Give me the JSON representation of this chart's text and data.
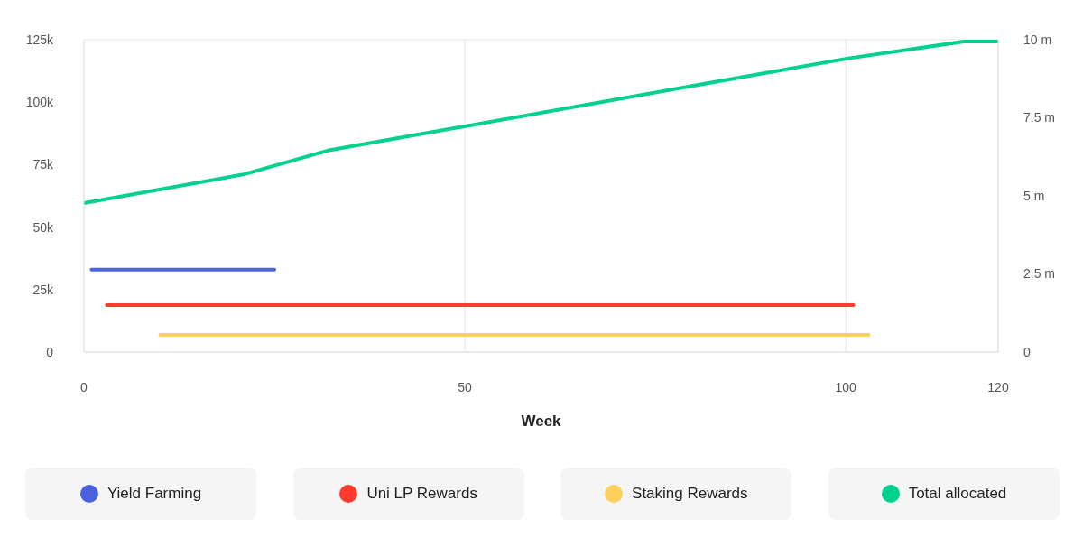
{
  "chart_data": {
    "type": "line",
    "xlabel": "Week",
    "xlim": [
      0,
      120
    ],
    "xticks": [
      0,
      50,
      100,
      120
    ],
    "ylim": [
      0,
      125000
    ],
    "yticks": [
      0,
      {
        "value": 25000,
        "label": "25k"
      },
      {
        "value": 50000,
        "label": "50k"
      },
      {
        "value": 75000,
        "label": "75k"
      },
      {
        "value": 100000,
        "label": "100k"
      },
      {
        "value": 125000,
        "label": "125k"
      }
    ],
    "y2lim": [
      0,
      10000000
    ],
    "y2ticks": [
      0,
      {
        "value": 2500000,
        "label": "2.5 m"
      },
      {
        "value": 5000000,
        "label": "5 m"
      },
      {
        "value": 7500000,
        "label": "7.5 m"
      },
      {
        "value": 10000000,
        "label": "10 m"
      }
    ],
    "grid": true,
    "legend": "bottom",
    "marker": "none",
    "line_style": "solid",
    "series": [
      {
        "name": "Yield Farming",
        "color": "#4c61e0",
        "x": [
          1,
          25
        ],
        "values": [
          33000,
          33000
        ]
      },
      {
        "name": "Uni LP Rewards",
        "color": "#ff3b30",
        "x": [
          3,
          101
        ],
        "values": [
          18800,
          18800
        ]
      },
      {
        "name": "Staking Rewards",
        "color": "#ffcf5c",
        "x": [
          10,
          103
        ],
        "values": [
          6900,
          6900
        ]
      },
      {
        "name": "Total allocated",
        "color": "#00d18f",
        "axis": "y2",
        "x": [
          0,
          21,
          32,
          100,
          115.5,
          120
        ],
        "values": [
          4770000,
          5690000,
          6450000,
          9390000,
          9940000,
          9940000
        ]
      }
    ]
  }
}
